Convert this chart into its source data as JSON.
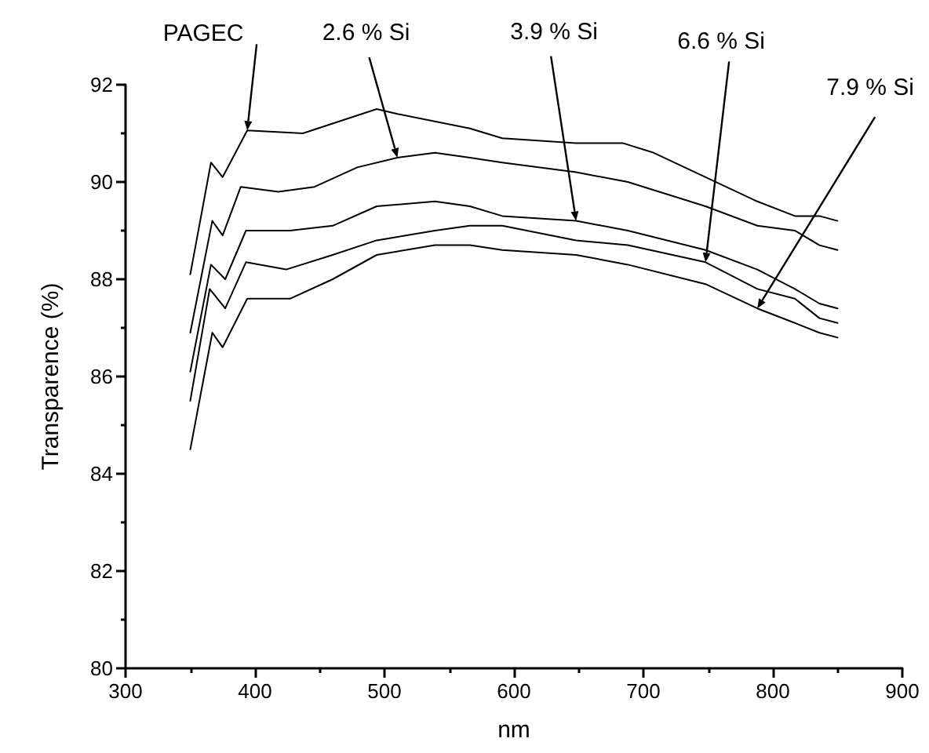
{
  "chart_data": {
    "type": "line",
    "xlabel": "nm",
    "ylabel": "Transparence (%)",
    "xlim": [
      300,
      900
    ],
    "xticks": [
      300,
      400,
      500,
      600,
      700,
      800,
      900
    ],
    "ylim": [
      80,
      92
    ],
    "yticks": [
      80,
      82,
      84,
      86,
      88,
      90,
      92
    ],
    "grid": false,
    "marker": "none",
    "line_style": "solid",
    "series": [
      {
        "color": "#000000",
        "x": [
          350,
          366,
          375,
          394,
          437,
          494,
          510,
          566,
          591,
          648,
          684,
          708,
          748,
          788,
          817,
          836,
          850
        ],
        "values": [
          88.1,
          90.4,
          90.1,
          91.06,
          91.0,
          91.5,
          91.4,
          91.1,
          90.9,
          90.8,
          90.8,
          90.6,
          90.1,
          89.6,
          89.3,
          89.3,
          89.2
        ]
      },
      {
        "color": "#000000",
        "x": [
          350,
          367,
          375,
          389,
          418,
          446,
          479,
          510,
          539,
          566,
          591,
          648,
          688,
          748,
          788,
          817,
          836,
          850
        ],
        "values": [
          86.9,
          89.2,
          88.9,
          89.9,
          89.8,
          89.9,
          90.3,
          90.5,
          90.6,
          90.5,
          90.4,
          90.2,
          90.0,
          89.5,
          89.1,
          89.0,
          88.7,
          88.6
        ]
      },
      {
        "color": "#000000",
        "x": [
          350,
          366,
          377,
          393,
          427,
          460,
          494,
          539,
          566,
          591,
          648,
          688,
          748,
          788,
          817,
          836,
          850
        ],
        "values": [
          86.1,
          88.3,
          88.0,
          89.0,
          89.0,
          89.1,
          89.5,
          89.6,
          89.5,
          89.3,
          89.2,
          89.0,
          88.6,
          88.2,
          87.8,
          87.5,
          87.4
        ]
      },
      {
        "color": "#000000",
        "x": [
          350,
          365,
          377,
          393,
          424,
          460,
          494,
          539,
          566,
          591,
          648,
          688,
          748,
          788,
          817,
          836,
          850
        ],
        "values": [
          85.5,
          87.8,
          87.4,
          88.35,
          88.2,
          88.5,
          88.8,
          89.0,
          89.1,
          89.1,
          88.8,
          88.7,
          88.35,
          87.8,
          87.6,
          87.2,
          87.1
        ]
      },
      {
        "color": "#000000",
        "x": [
          350,
          367,
          375,
          394,
          427,
          460,
          494,
          539,
          566,
          591,
          648,
          688,
          748,
          788,
          817,
          836,
          850
        ],
        "values": [
          84.5,
          86.9,
          86.6,
          87.6,
          87.6,
          88.0,
          88.5,
          88.7,
          88.7,
          88.6,
          88.5,
          88.3,
          87.9,
          87.4,
          87.1,
          86.9,
          86.8
        ]
      }
    ],
    "annotations": [
      {
        "text": "PAGEC",
        "x": 394,
        "y": 91.06
      },
      {
        "text": "2.6 % Si",
        "x": 510,
        "y": 90.5
      },
      {
        "text": "3.9 % Si",
        "x": 648,
        "y": 89.2
      },
      {
        "text": "6.6 % Si",
        "x": 748,
        "y": 88.35
      },
      {
        "text": "7.9 % Si",
        "x": 788,
        "y": 87.4
      }
    ]
  }
}
